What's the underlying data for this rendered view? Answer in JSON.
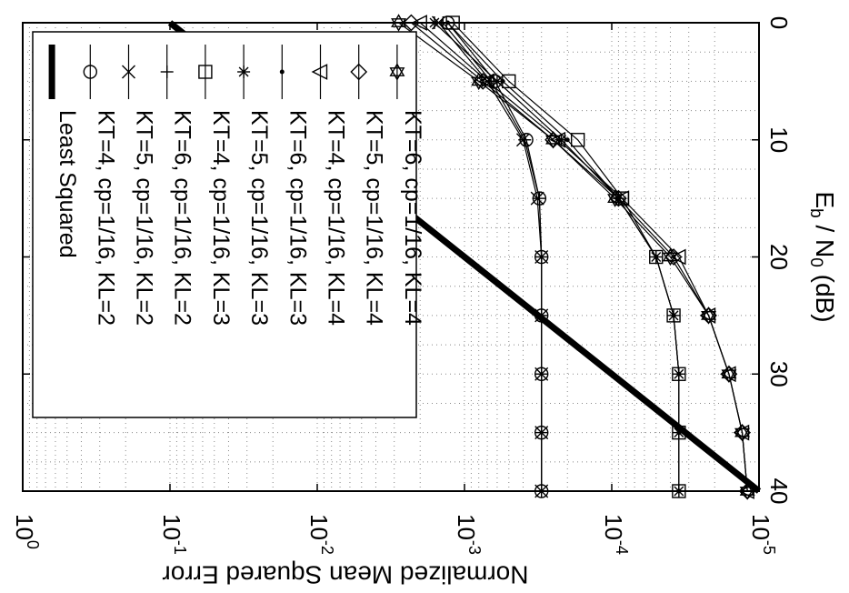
{
  "chart_data": {
    "type": "line",
    "orientation": "rotated-90-clockwise",
    "x_axis": {
      "label_parts": [
        "E",
        "b",
        " / N",
        "0",
        " (dB)"
      ],
      "range": [
        0,
        40
      ],
      "ticks": [
        0,
        10,
        20,
        30,
        40
      ],
      "tick_labels": [
        "0",
        "10",
        "20",
        "30",
        "40"
      ]
    },
    "y_axis": {
      "label": "Normalized Mean Squared Error",
      "scale": "log",
      "range": [
        1e-05,
        1
      ],
      "ticks": [
        1,
        0.1,
        0.01,
        0.001,
        0.0001,
        1e-05
      ],
      "tick_labels": [
        {
          "base": "10",
          "exp": "0"
        },
        {
          "base": "10",
          "exp": "-1"
        },
        {
          "base": "10",
          "exp": "-2"
        },
        {
          "base": "10",
          "exp": "-3"
        },
        {
          "base": "10",
          "exp": "-4"
        },
        {
          "base": "10",
          "exp": "-5"
        }
      ]
    },
    "grid": true,
    "legend_position": "top-left",
    "series": [
      {
        "name": "Least Squared",
        "marker": "none",
        "line_width": "thick",
        "x": [
          0,
          40
        ],
        "y": [
          0.1,
          1e-05
        ]
      },
      {
        "name": "KT=4, cp=1/16, KL=2",
        "marker": "circle",
        "x": [
          0,
          5,
          10,
          15,
          20,
          25,
          30,
          35,
          40
        ],
        "y": [
          0.0013,
          0.00062,
          0.00038,
          0.00031,
          0.0003,
          0.0003,
          0.0003,
          0.0003,
          0.0003
        ]
      },
      {
        "name": "KT=5, cp=1/16, KL=2",
        "marker": "x",
        "x": [
          0,
          5,
          10,
          15,
          20,
          25,
          30,
          35,
          40
        ],
        "y": [
          0.0015,
          0.0007,
          0.0004,
          0.00032,
          0.0003,
          0.0003,
          0.0003,
          0.0003,
          0.0003
        ]
      },
      {
        "name": "KT=6, cp=1/16, KL=2",
        "marker": "plus",
        "x": [
          0,
          5,
          10,
          15,
          20,
          25,
          30,
          35,
          40
        ],
        "y": [
          0.0014,
          0.00066,
          0.00039,
          0.00031,
          0.0003,
          0.0003,
          0.0003,
          0.0003,
          0.0003
        ]
      },
      {
        "name": "KT=4, cp=1/16, KL=3",
        "marker": "square",
        "x": [
          0,
          5,
          10,
          15,
          20,
          25,
          30,
          35,
          40
        ],
        "y": [
          0.0012,
          0.0005,
          0.00017,
          8.5e-05,
          5e-05,
          3.8e-05,
          3.5e-05,
          3.5e-05,
          3.5e-05
        ]
      },
      {
        "name": "KT=5, cp=1/16, KL=3",
        "marker": "asterisk",
        "x": [
          0,
          5,
          10,
          15,
          20,
          25,
          30,
          35,
          40
        ],
        "y": [
          0.0016,
          0.0006,
          0.00022,
          9e-05,
          5e-05,
          3.8e-05,
          3.5e-05,
          3.5e-05,
          3.5e-05
        ]
      },
      {
        "name": "KT=6, cp=1/16, KL=3",
        "marker": "dot",
        "x": [
          0,
          5,
          10,
          15,
          20,
          25,
          30,
          35,
          40
        ],
        "y": [
          0.0013,
          0.00055,
          0.0002,
          9e-05,
          5e-05,
          3.8e-05,
          3.5e-05,
          3.5e-05,
          3.5e-05
        ]
      },
      {
        "name": "KT=4, cp=1/16, KL=4",
        "marker": "triangle",
        "x": [
          0,
          5,
          10,
          15,
          20,
          25,
          30,
          35,
          40
        ],
        "y": [
          0.002,
          0.0007,
          0.00023,
          8.5e-05,
          3.5e-05,
          2.2e-05,
          1.6e-05,
          1.3e-05,
          1.2e-05
        ]
      },
      {
        "name": "KT=5, cp=1/16, KL=4",
        "marker": "diamond",
        "x": [
          0,
          5,
          10,
          15,
          20,
          25,
          30,
          35,
          40
        ],
        "y": [
          0.0023,
          0.00075,
          0.00025,
          9e-05,
          3.8e-05,
          2.2e-05,
          1.6e-05,
          1.3e-05,
          1.2e-05
        ]
      },
      {
        "name": "KT=6, cp=1/16, KL=4",
        "marker": "hexagram",
        "x": [
          0,
          5,
          10,
          15,
          20,
          25,
          30,
          35,
          40
        ],
        "y": [
          0.0028,
          0.0008,
          0.00025,
          9.5e-05,
          4e-05,
          2.2e-05,
          1.6e-05,
          1.3e-05,
          1.2e-05
        ]
      }
    ]
  }
}
